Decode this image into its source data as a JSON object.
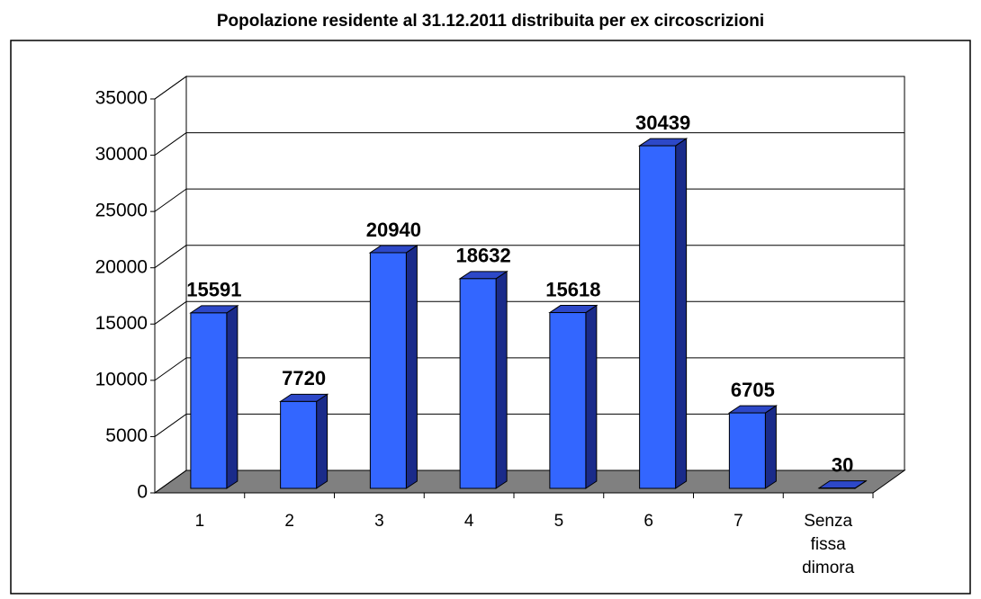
{
  "chart_data": {
    "type": "bar3d",
    "title": "Popolazione residente al 31.12.2011 distribuita per ex circoscrizioni",
    "categories": [
      "1",
      "2",
      "3",
      "4",
      "5",
      "6",
      "7",
      "Senza fissa dimora"
    ],
    "values": [
      15591,
      7720,
      20940,
      18632,
      15618,
      30439,
      6705,
      30
    ],
    "color": "#3366ff",
    "ylim": [
      0,
      35000
    ],
    "yticks": [
      0,
      5000,
      10000,
      15000,
      20000,
      25000,
      30000,
      35000
    ],
    "grid": true
  }
}
